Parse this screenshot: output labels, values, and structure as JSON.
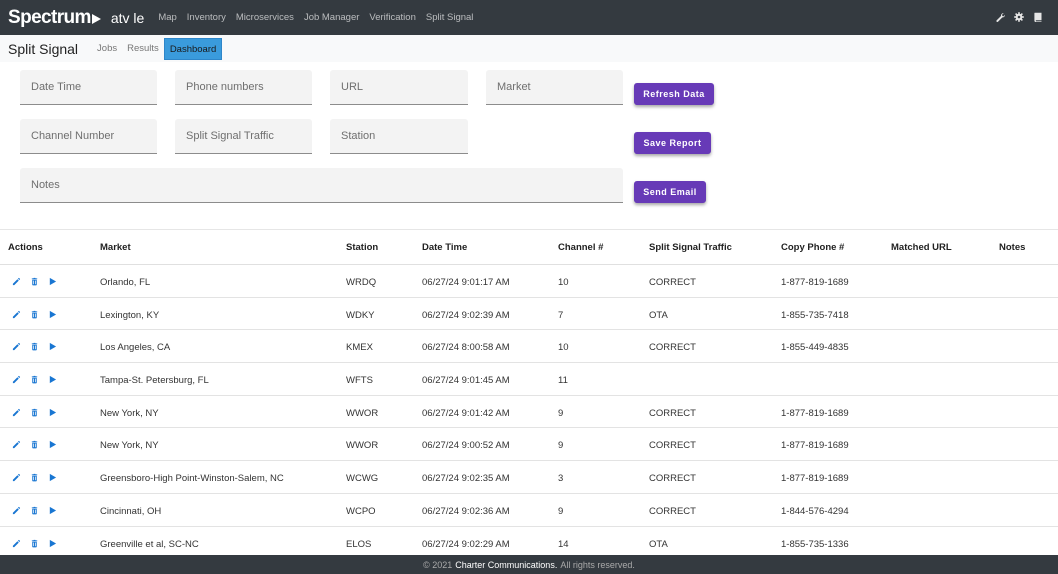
{
  "brand": {
    "logo_text": "Spectrum",
    "app_name": "atv le"
  },
  "nav": [
    "Map",
    "Inventory",
    "Microservices",
    "Job Manager",
    "Verification",
    "Split Signal"
  ],
  "nav_icons": [
    "wrench-icon",
    "gear-icon",
    "book-icon"
  ],
  "page": {
    "title": "Split Signal",
    "tabs": [
      "Jobs",
      "Results",
      "Dashboard"
    ],
    "active_tab": "Dashboard"
  },
  "form": {
    "date_time": "Date Time",
    "phone_numbers": "Phone numbers",
    "url": "URL",
    "market": "Market",
    "channel_number": "Channel Number",
    "split_signal_traffic": "Split Signal Traffic",
    "station": "Station",
    "notes": "Notes"
  },
  "buttons": {
    "refresh": "Refresh Data",
    "save": "Save Report",
    "email": "Send Email"
  },
  "colors": {
    "accent_purple": "#673ab7",
    "active_tab_blue": "#3a9bdc",
    "nav_bg": "#343a40",
    "action_icon": "#1976d2"
  },
  "table": {
    "headers": [
      "Actions",
      "Market",
      "Station",
      "Date Time",
      "Channel #",
      "Split Signal Traffic",
      "Copy Phone #",
      "Matched URL",
      "Notes"
    ],
    "action_icons": [
      "pencil-icon",
      "trash-icon",
      "play-icon"
    ],
    "rows": [
      {
        "market": "Orlando, FL",
        "station": "WRDQ",
        "datetime": "06/27/24 9:01:17 AM",
        "channel": "10",
        "traffic": "CORRECT",
        "phone": "1-877-819-1689",
        "url": "",
        "notes": ""
      },
      {
        "market": "Lexington, KY",
        "station": "WDKY",
        "datetime": "06/27/24 9:02:39 AM",
        "channel": "7",
        "traffic": "OTA",
        "phone": "1-855-735-7418",
        "url": "",
        "notes": ""
      },
      {
        "market": "Los Angeles, CA",
        "station": "KMEX",
        "datetime": "06/27/24 8:00:58 AM",
        "channel": "10",
        "traffic": "CORRECT",
        "phone": "1-855-449-4835",
        "url": "",
        "notes": ""
      },
      {
        "market": "Tampa-St. Petersburg, FL",
        "station": "WFTS",
        "datetime": "06/27/24 9:01:45 AM",
        "channel": "11",
        "traffic": "",
        "phone": "",
        "url": "",
        "notes": ""
      },
      {
        "market": "New York, NY",
        "station": "WWOR",
        "datetime": "06/27/24 9:01:42 AM",
        "channel": "9",
        "traffic": "CORRECT",
        "phone": "1-877-819-1689",
        "url": "",
        "notes": ""
      },
      {
        "market": "New York, NY",
        "station": "WWOR",
        "datetime": "06/27/24 9:00:52 AM",
        "channel": "9",
        "traffic": "CORRECT",
        "phone": "1-877-819-1689",
        "url": "",
        "notes": ""
      },
      {
        "market": "Greensboro-High Point-Winston-Salem, NC",
        "station": "WCWG",
        "datetime": "06/27/24 9:02:35 AM",
        "channel": "3",
        "traffic": "CORRECT",
        "phone": "1-877-819-1689",
        "url": "",
        "notes": ""
      },
      {
        "market": "Cincinnati, OH",
        "station": "WCPO",
        "datetime": "06/27/24 9:02:36 AM",
        "channel": "9",
        "traffic": "CORRECT",
        "phone": "1-844-576-4294",
        "url": "",
        "notes": ""
      },
      {
        "market": "Greenville et al, SC-NC",
        "station": "ELOS",
        "datetime": "06/27/24 9:02:29 AM",
        "channel": "14",
        "traffic": "OTA",
        "phone": "1-855-735-1336",
        "url": "",
        "notes": ""
      }
    ]
  },
  "footer": {
    "prefix": "© 2021",
    "company": "Charter Communications.",
    "suffix": "All rights reserved."
  }
}
